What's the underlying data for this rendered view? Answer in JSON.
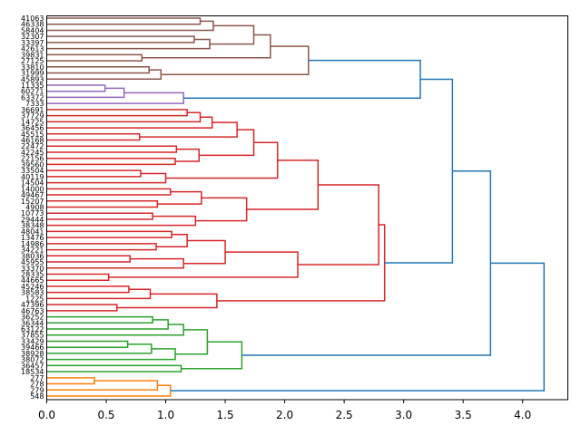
{
  "chart_data": {
    "type": "dendrogram",
    "title": "",
    "xlabel": "",
    "ylabel": "",
    "orientation": "right",
    "xlim": [
      0,
      4.38
    ],
    "xticks": [
      0.0,
      0.5,
      1.0,
      1.5,
      2.0,
      2.5,
      3.0,
      3.5,
      4.0
    ],
    "xtick_labels": [
      "0.0",
      "0.5",
      "1.0",
      "1.5",
      "2.0",
      "2.5",
      "3.0",
      "3.5",
      "4.0"
    ],
    "leaves": [
      "41063",
      "46338",
      "58404",
      "32307",
      "33397",
      "42613",
      "39831",
      "27125",
      "33810",
      "31999",
      "45893",
      "11335",
      "60271",
      "63372",
      "7333",
      "36691",
      "37729",
      "14725",
      "36456",
      "45515",
      "46168",
      "22472",
      "42245",
      "22156",
      "39560",
      "33504",
      "40119",
      "14504",
      "14000",
      "49467",
      "15207",
      "4908",
      "10773",
      "29444",
      "38348",
      "48041",
      "13476",
      "14986",
      "34221",
      "38036",
      "45955",
      "33370",
      "28335",
      "44665",
      "45246",
      "38583",
      "1225",
      "47396",
      "46763",
      "36252",
      "36344",
      "63122",
      "37855",
      "33429",
      "39466",
      "38928",
      "38072",
      "36457",
      "18534",
      "277",
      "278",
      "279",
      "548"
    ],
    "colors": {
      "brown": "#8c564b",
      "purple": "#9467bd",
      "red": "#d62728",
      "green": "#2ca02c",
      "orange": "#ff7f0e",
      "blue": "#1f77b4"
    },
    "merges": [
      {
        "id": "b1",
        "a": "L0",
        "b": "L1",
        "h": 1.29,
        "c": "brown"
      },
      {
        "id": "b2",
        "a": "b1",
        "b": "L2",
        "h": 1.4,
        "c": "brown"
      },
      {
        "id": "b3",
        "a": "L3",
        "b": "L4",
        "h": 1.24,
        "c": "brown"
      },
      {
        "id": "b4",
        "a": "b3",
        "b": "L5",
        "h": 1.37,
        "c": "brown"
      },
      {
        "id": "b5",
        "a": "b2",
        "b": "b4",
        "h": 1.74,
        "c": "brown"
      },
      {
        "id": "b6",
        "a": "L6",
        "b": "L7",
        "h": 0.8,
        "c": "brown"
      },
      {
        "id": "b7",
        "a": "b5",
        "b": "b6",
        "h": 1.88,
        "c": "brown"
      },
      {
        "id": "b8",
        "a": "L8",
        "b": "L9",
        "h": 0.86,
        "c": "brown"
      },
      {
        "id": "b9",
        "a": "b8",
        "b": "L10",
        "h": 0.96,
        "c": "brown"
      },
      {
        "id": "b10",
        "a": "b7",
        "b": "b9",
        "h": 2.2,
        "c": "brown"
      },
      {
        "id": "p1",
        "a": "L11",
        "b": "L12",
        "h": 0.49,
        "c": "purple"
      },
      {
        "id": "p2",
        "a": "p1",
        "b": "L13",
        "h": 0.65,
        "c": "purple"
      },
      {
        "id": "p3",
        "a": "p2",
        "b": "L14",
        "h": 1.15,
        "c": "purple"
      },
      {
        "id": "r1",
        "a": "L15",
        "b": "L16",
        "h": 1.18,
        "c": "red"
      },
      {
        "id": "r2",
        "a": "r1",
        "b": "L17",
        "h": 1.29,
        "c": "red"
      },
      {
        "id": "r3",
        "a": "r2",
        "b": "L18",
        "h": 1.39,
        "c": "red"
      },
      {
        "id": "r4",
        "a": "L19",
        "b": "L20",
        "h": 0.78,
        "c": "red"
      },
      {
        "id": "r5",
        "a": "r3",
        "b": "r4",
        "h": 1.6,
        "c": "red"
      },
      {
        "id": "r6",
        "a": "L21",
        "b": "L22",
        "h": 1.09,
        "c": "red"
      },
      {
        "id": "r7",
        "a": "L23",
        "b": "L24",
        "h": 1.08,
        "c": "red"
      },
      {
        "id": "r8",
        "a": "r6",
        "b": "r7",
        "h": 1.28,
        "c": "red"
      },
      {
        "id": "r9",
        "a": "r5",
        "b": "r8",
        "h": 1.74,
        "c": "red"
      },
      {
        "id": "r10",
        "a": "L25",
        "b": "L26",
        "h": 0.79,
        "c": "red"
      },
      {
        "id": "r11",
        "a": "r10",
        "b": "L27",
        "h": 1.0,
        "c": "red"
      },
      {
        "id": "r12",
        "a": "r9",
        "b": "r11",
        "h": 1.94,
        "c": "red"
      },
      {
        "id": "r13",
        "a": "L28",
        "b": "L29",
        "h": 1.04,
        "c": "red"
      },
      {
        "id": "r14",
        "a": "L30",
        "b": "L31",
        "h": 0.93,
        "c": "red"
      },
      {
        "id": "r15",
        "a": "r13",
        "b": "r14",
        "h": 1.3,
        "c": "red"
      },
      {
        "id": "r16",
        "a": "L32",
        "b": "L33",
        "h": 0.89,
        "c": "red"
      },
      {
        "id": "r17",
        "a": "r16",
        "b": "L34",
        "h": 1.25,
        "c": "red"
      },
      {
        "id": "r18",
        "a": "r15",
        "b": "r17",
        "h": 1.68,
        "c": "red"
      },
      {
        "id": "r19",
        "a": "r12",
        "b": "r18",
        "h": 2.28,
        "c": "red"
      },
      {
        "id": "r20",
        "a": "L35",
        "b": "L36",
        "h": 1.05,
        "c": "red"
      },
      {
        "id": "r21",
        "a": "L37",
        "b": "L38",
        "h": 0.92,
        "c": "red"
      },
      {
        "id": "r22",
        "a": "r20",
        "b": "r21",
        "h": 1.18,
        "c": "red"
      },
      {
        "id": "r23",
        "a": "L39",
        "b": "L40",
        "h": 0.7,
        "c": "red"
      },
      {
        "id": "r24",
        "a": "r23",
        "b": "L41",
        "h": 1.15,
        "c": "red"
      },
      {
        "id": "r25",
        "a": "r22",
        "b": "r24",
        "h": 1.5,
        "c": "red"
      },
      {
        "id": "r26",
        "a": "L42",
        "b": "L43",
        "h": 0.52,
        "c": "red"
      },
      {
        "id": "r27",
        "a": "r25",
        "b": "r26",
        "h": 2.11,
        "c": "red"
      },
      {
        "id": "r28",
        "a": "r19",
        "b": "r27",
        "h": 2.79,
        "c": "red"
      },
      {
        "id": "r29",
        "a": "L44",
        "b": "L45",
        "h": 0.69,
        "c": "red"
      },
      {
        "id": "r30",
        "a": "r29",
        "b": "L46",
        "h": 0.87,
        "c": "red"
      },
      {
        "id": "r31",
        "a": "L47",
        "b": "L48",
        "h": 0.59,
        "c": "red"
      },
      {
        "id": "r32",
        "a": "r30",
        "b": "r31",
        "h": 1.43,
        "c": "red"
      },
      {
        "id": "r33",
        "a": "r28",
        "b": "r32",
        "h": 2.84,
        "c": "red"
      },
      {
        "id": "g1",
        "a": "L49",
        "b": "L50",
        "h": 0.89,
        "c": "green"
      },
      {
        "id": "g2",
        "a": "g1",
        "b": "L51",
        "h": 1.02,
        "c": "green"
      },
      {
        "id": "g3",
        "a": "g2",
        "b": "L52",
        "h": 1.15,
        "c": "green"
      },
      {
        "id": "g4",
        "a": "L53",
        "b": "L54",
        "h": 0.68,
        "c": "green"
      },
      {
        "id": "g5",
        "a": "g4",
        "b": "L55",
        "h": 0.88,
        "c": "green"
      },
      {
        "id": "g6",
        "a": "g5",
        "b": "L56",
        "h": 1.08,
        "c": "green"
      },
      {
        "id": "g7",
        "a": "g3",
        "b": "g6",
        "h": 1.35,
        "c": "green"
      },
      {
        "id": "g8",
        "a": "L57",
        "b": "L58",
        "h": 1.13,
        "c": "green"
      },
      {
        "id": "g9",
        "a": "g7",
        "b": "g8",
        "h": 1.64,
        "c": "green"
      },
      {
        "id": "o1",
        "a": "L59",
        "b": "L60",
        "h": 0.4,
        "c": "orange"
      },
      {
        "id": "o2",
        "a": "o1",
        "b": "L61",
        "h": 0.93,
        "c": "orange"
      },
      {
        "id": "o3",
        "a": "o2",
        "b": "L62",
        "h": 1.04,
        "c": "orange"
      },
      {
        "id": "u1",
        "a": "b10",
        "b": "p3",
        "h": 3.14,
        "c": "blue"
      },
      {
        "id": "u2",
        "a": "u1",
        "b": "r33",
        "h": 3.41,
        "c": "blue"
      },
      {
        "id": "u3",
        "a": "u2",
        "b": "g9",
        "h": 3.73,
        "c": "blue"
      },
      {
        "id": "u4",
        "a": "u3",
        "b": "o3",
        "h": 4.18,
        "c": "blue"
      }
    ]
  }
}
